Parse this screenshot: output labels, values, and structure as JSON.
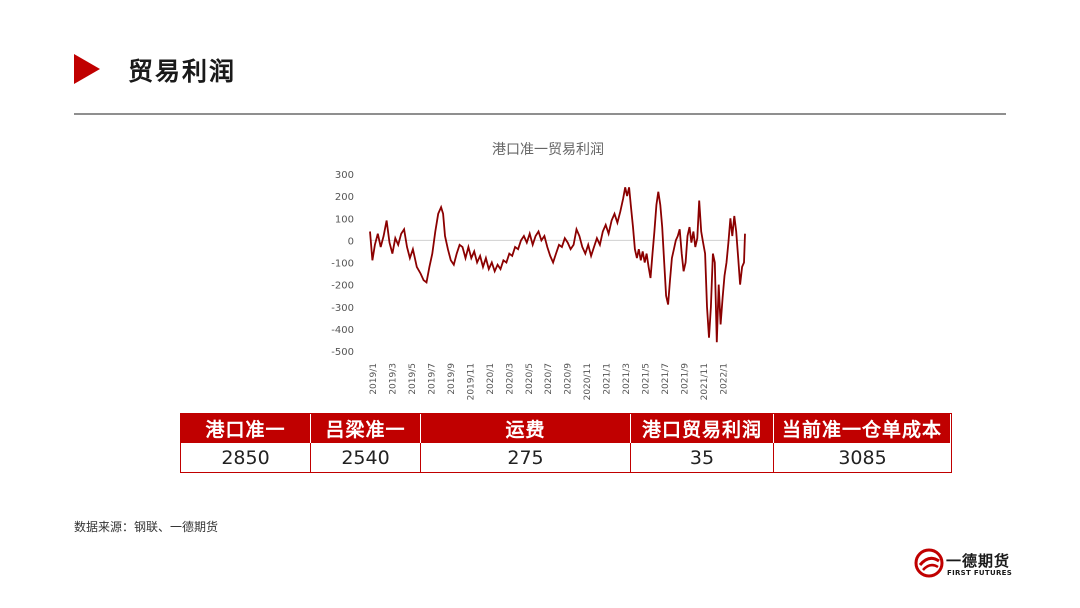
{
  "header": {
    "title": "贸易利润"
  },
  "chart_data": {
    "type": "line",
    "title": "港口准一贸易利润",
    "xlabel": "",
    "ylabel": "",
    "ylim": [
      -500,
      300
    ],
    "yticks": [
      300,
      200,
      100,
      0,
      -100,
      -200,
      -300,
      -400,
      -500
    ],
    "xticks": [
      "2019/1",
      "2019/3",
      "2019/5",
      "2019/7",
      "2019/9",
      "2019/11",
      "2020/1",
      "2020/3",
      "2020/5",
      "2020/7",
      "2020/9",
      "2020/11",
      "2021/1",
      "2021/3",
      "2021/5",
      "2021/7",
      "2021/9",
      "2021/11",
      "2022/1"
    ],
    "x_range": [
      0,
      38.5
    ],
    "series": [
      {
        "color": "#8b0000",
        "points": [
          [
            0,
            40
          ],
          [
            0.25,
            -90
          ],
          [
            0.5,
            -20
          ],
          [
            0.8,
            30
          ],
          [
            1.1,
            -30
          ],
          [
            1.4,
            20
          ],
          [
            1.7,
            90
          ],
          [
            2.0,
            -10
          ],
          [
            2.3,
            -60
          ],
          [
            2.6,
            10
          ],
          [
            2.9,
            -20
          ],
          [
            3.2,
            30
          ],
          [
            3.5,
            50
          ],
          [
            3.8,
            -30
          ],
          [
            4.1,
            -80
          ],
          [
            4.4,
            -40
          ],
          [
            4.8,
            -120
          ],
          [
            5.2,
            -150
          ],
          [
            5.5,
            -180
          ],
          [
            5.8,
            -190
          ],
          [
            6.1,
            -120
          ],
          [
            6.4,
            -60
          ],
          [
            6.7,
            40
          ],
          [
            7.0,
            120
          ],
          [
            7.3,
            150
          ],
          [
            7.5,
            120
          ],
          [
            7.7,
            20
          ],
          [
            8.0,
            -40
          ],
          [
            8.3,
            -90
          ],
          [
            8.6,
            -110
          ],
          [
            8.9,
            -60
          ],
          [
            9.2,
            -20
          ],
          [
            9.5,
            -30
          ],
          [
            9.8,
            -80
          ],
          [
            10.1,
            -30
          ],
          [
            10.4,
            -80
          ],
          [
            10.7,
            -50
          ],
          [
            11.0,
            -100
          ],
          [
            11.3,
            -70
          ],
          [
            11.6,
            -120
          ],
          [
            11.9,
            -80
          ],
          [
            12.2,
            -130
          ],
          [
            12.5,
            -100
          ],
          [
            12.8,
            -140
          ],
          [
            13.1,
            -110
          ],
          [
            13.4,
            -130
          ],
          [
            13.7,
            -90
          ],
          [
            14.0,
            -100
          ],
          [
            14.3,
            -60
          ],
          [
            14.6,
            -70
          ],
          [
            14.9,
            -30
          ],
          [
            15.2,
            -40
          ],
          [
            15.5,
            0
          ],
          [
            15.8,
            20
          ],
          [
            16.1,
            -10
          ],
          [
            16.4,
            30
          ],
          [
            16.7,
            -20
          ],
          [
            17.0,
            20
          ],
          [
            17.3,
            40
          ],
          [
            17.6,
            0
          ],
          [
            17.9,
            20
          ],
          [
            18.2,
            -30
          ],
          [
            18.5,
            -70
          ],
          [
            18.8,
            -100
          ],
          [
            19.1,
            -60
          ],
          [
            19.4,
            -20
          ],
          [
            19.7,
            -30
          ],
          [
            20.0,
            10
          ],
          [
            20.3,
            -10
          ],
          [
            20.6,
            -40
          ],
          [
            20.9,
            -20
          ],
          [
            21.2,
            50
          ],
          [
            21.5,
            20
          ],
          [
            21.8,
            -30
          ],
          [
            22.1,
            -60
          ],
          [
            22.4,
            -20
          ],
          [
            22.7,
            -70
          ],
          [
            23.0,
            -30
          ],
          [
            23.3,
            10
          ],
          [
            23.6,
            -20
          ],
          [
            23.9,
            40
          ],
          [
            24.2,
            70
          ],
          [
            24.5,
            30
          ],
          [
            24.8,
            90
          ],
          [
            25.1,
            120
          ],
          [
            25.4,
            80
          ],
          [
            25.7,
            130
          ],
          [
            26.0,
            190
          ],
          [
            26.2,
            240
          ],
          [
            26.4,
            200
          ],
          [
            26.6,
            240
          ],
          [
            26.8,
            150
          ],
          [
            27.0,
            60
          ],
          [
            27.2,
            -40
          ],
          [
            27.4,
            -80
          ],
          [
            27.6,
            -40
          ],
          [
            27.8,
            -90
          ],
          [
            28.0,
            -50
          ],
          [
            28.2,
            -100
          ],
          [
            28.4,
            -60
          ],
          [
            28.6,
            -120
          ],
          [
            28.8,
            -170
          ],
          [
            29.0,
            -60
          ],
          [
            29.2,
            40
          ],
          [
            29.4,
            160
          ],
          [
            29.6,
            220
          ],
          [
            29.8,
            160
          ],
          [
            30.0,
            60
          ],
          [
            30.2,
            -100
          ],
          [
            30.4,
            -250
          ],
          [
            30.6,
            -290
          ],
          [
            30.8,
            -180
          ],
          [
            31.0,
            -80
          ],
          [
            31.2,
            -40
          ],
          [
            31.4,
            0
          ],
          [
            31.6,
            20
          ],
          [
            31.8,
            50
          ],
          [
            32.0,
            -60
          ],
          [
            32.2,
            -140
          ],
          [
            32.4,
            -100
          ],
          [
            32.6,
            20
          ],
          [
            32.8,
            60
          ],
          [
            33.0,
            -10
          ],
          [
            33.2,
            40
          ],
          [
            33.4,
            -30
          ],
          [
            33.6,
            10
          ],
          [
            33.8,
            180
          ],
          [
            34.0,
            40
          ],
          [
            34.2,
            -10
          ],
          [
            34.4,
            -60
          ],
          [
            34.6,
            -300
          ],
          [
            34.8,
            -440
          ],
          [
            35.0,
            -300
          ],
          [
            35.2,
            -60
          ],
          [
            35.4,
            -100
          ],
          [
            35.6,
            -460
          ],
          [
            35.8,
            -200
          ],
          [
            36.0,
            -380
          ],
          [
            36.2,
            -260
          ],
          [
            36.4,
            -160
          ],
          [
            36.6,
            -100
          ],
          [
            36.8,
            -10
          ],
          [
            37.0,
            100
          ],
          [
            37.2,
            20
          ],
          [
            37.4,
            110
          ],
          [
            37.6,
            40
          ],
          [
            37.8,
            -80
          ],
          [
            38.0,
            -200
          ],
          [
            38.2,
            -120
          ],
          [
            38.4,
            -100
          ],
          [
            38.5,
            30
          ]
        ]
      }
    ]
  },
  "table": {
    "headers": [
      "港口准一",
      "吕梁准一",
      "运费",
      "港口贸易利润",
      "当前准一仓单成本"
    ],
    "values": [
      "2850",
      "2540",
      "275",
      "35",
      "3085"
    ]
  },
  "footer": {
    "source": "数据来源：钢联、一德期货"
  },
  "logo": {
    "cn": "一德期货",
    "en": "FIRST FUTURES"
  },
  "colors": {
    "accent": "#c00000",
    "line": "#8b0000",
    "rule": "#8f8f8f"
  }
}
